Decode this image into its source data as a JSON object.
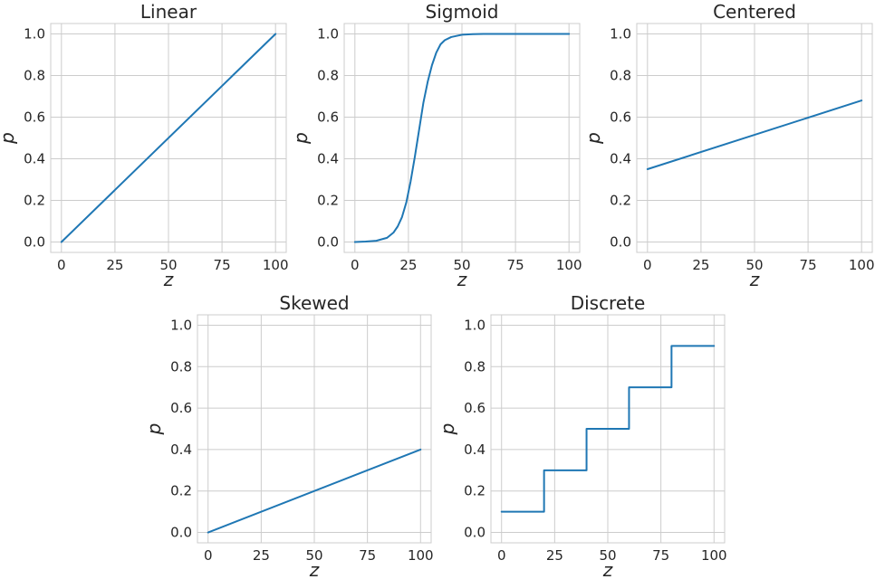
{
  "chart_data": [
    {
      "type": "line",
      "title": "Linear",
      "xlabel": "z",
      "ylabel": "p",
      "xlim": [
        -5,
        105
      ],
      "ylim": [
        -0.05,
        1.05
      ],
      "xticks": [
        0,
        25,
        50,
        75,
        100
      ],
      "yticks": [
        0.0,
        0.2,
        0.4,
        0.6,
        0.8,
        1.0
      ],
      "xtick_labels": [
        "0",
        "25",
        "50",
        "75",
        "100"
      ],
      "ytick_labels": [
        "0.0",
        "0.2",
        "0.4",
        "0.6",
        "0.8",
        "1.0"
      ],
      "grid": true,
      "line_color": "#1f77b4",
      "series": [
        {
          "x": [
            0,
            100
          ],
          "y": [
            0.0,
            1.0
          ]
        }
      ]
    },
    {
      "type": "line",
      "title": "Sigmoid",
      "xlabel": "z",
      "ylabel": "p",
      "xlim": [
        -5,
        105
      ],
      "ylim": [
        -0.05,
        1.05
      ],
      "xticks": [
        0,
        25,
        50,
        75,
        100
      ],
      "yticks": [
        0.0,
        0.2,
        0.4,
        0.6,
        0.8,
        1.0
      ],
      "xtick_labels": [
        "0",
        "25",
        "50",
        "75",
        "100"
      ],
      "ytick_labels": [
        "0.0",
        "0.2",
        "0.4",
        "0.6",
        "0.8",
        "1.0"
      ],
      "grid": true,
      "line_color": "#1f77b4",
      "series": [
        {
          "x": [
            0,
            5,
            10,
            15,
            18,
            20,
            22,
            24,
            26,
            28,
            30,
            32,
            34,
            36,
            38,
            40,
            42,
            45,
            50,
            55,
            60,
            70,
            80,
            90,
            100
          ],
          "y": [
            0.0,
            0.002,
            0.006,
            0.02,
            0.045,
            0.075,
            0.12,
            0.19,
            0.29,
            0.41,
            0.54,
            0.67,
            0.77,
            0.85,
            0.91,
            0.95,
            0.97,
            0.985,
            0.996,
            0.999,
            1.0,
            1.0,
            1.0,
            1.0,
            1.0
          ]
        }
      ]
    },
    {
      "type": "line",
      "title": "Centered",
      "xlabel": "z",
      "ylabel": "p",
      "xlim": [
        -5,
        105
      ],
      "ylim": [
        -0.05,
        1.05
      ],
      "xticks": [
        0,
        25,
        50,
        75,
        100
      ],
      "yticks": [
        0.0,
        0.2,
        0.4,
        0.6,
        0.8,
        1.0
      ],
      "xtick_labels": [
        "0",
        "25",
        "50",
        "75",
        "100"
      ],
      "ytick_labels": [
        "0.0",
        "0.2",
        "0.4",
        "0.6",
        "0.8",
        "1.0"
      ],
      "grid": true,
      "line_color": "#1f77b4",
      "series": [
        {
          "x": [
            0,
            100
          ],
          "y": [
            0.35,
            0.68
          ]
        }
      ]
    },
    {
      "type": "line",
      "title": "Skewed",
      "xlabel": "z",
      "ylabel": "p",
      "xlim": [
        -5,
        105
      ],
      "ylim": [
        -0.05,
        1.05
      ],
      "xticks": [
        0,
        25,
        50,
        75,
        100
      ],
      "yticks": [
        0.0,
        0.2,
        0.4,
        0.6,
        0.8,
        1.0
      ],
      "xtick_labels": [
        "0",
        "25",
        "50",
        "75",
        "100"
      ],
      "ytick_labels": [
        "0.0",
        "0.2",
        "0.4",
        "0.6",
        "0.8",
        "1.0"
      ],
      "grid": true,
      "line_color": "#1f77b4",
      "series": [
        {
          "x": [
            0,
            100
          ],
          "y": [
            0.0,
            0.4
          ]
        }
      ]
    },
    {
      "type": "line",
      "title": "Discrete",
      "xlabel": "z",
      "ylabel": "p",
      "xlim": [
        -5,
        105
      ],
      "ylim": [
        -0.05,
        1.05
      ],
      "xticks": [
        0,
        25,
        50,
        75,
        100
      ],
      "yticks": [
        0.0,
        0.2,
        0.4,
        0.6,
        0.8,
        1.0
      ],
      "xtick_labels": [
        "0",
        "25",
        "50",
        "75",
        "100"
      ],
      "ytick_labels": [
        "0.0",
        "0.2",
        "0.4",
        "0.6",
        "0.8",
        "1.0"
      ],
      "grid": true,
      "line_color": "#1f77b4",
      "series": [
        {
          "x": [
            0,
            20,
            20,
            40,
            40,
            60,
            60,
            80,
            80,
            100
          ],
          "y": [
            0.1,
            0.1,
            0.3,
            0.3,
            0.5,
            0.5,
            0.7,
            0.7,
            0.9,
            0.9
          ]
        }
      ]
    }
  ]
}
